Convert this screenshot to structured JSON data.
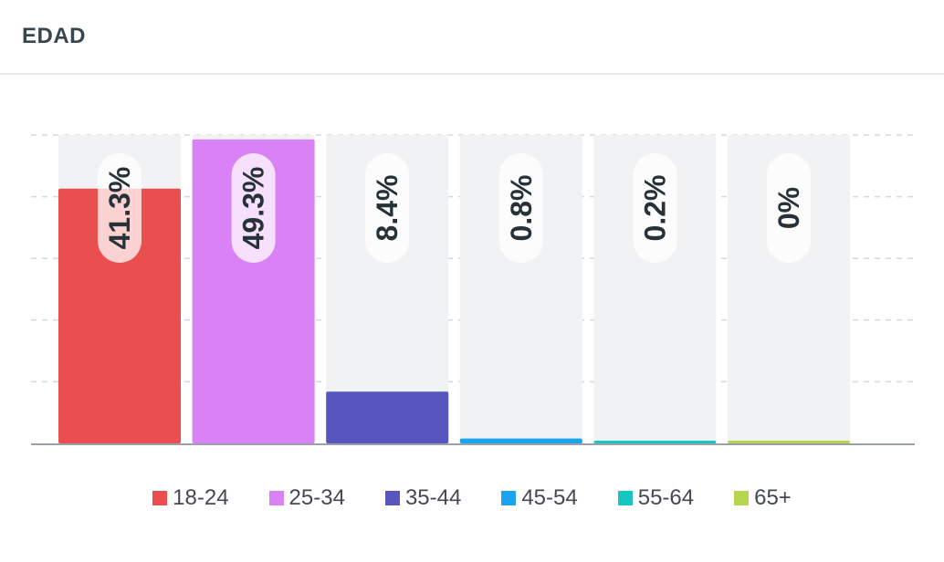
{
  "card": {
    "title": "EDAD"
  },
  "chart_data": {
    "type": "bar",
    "title": "EDAD",
    "categories": [
      "18-24",
      "25-34",
      "35-44",
      "45-54",
      "55-64",
      "65+"
    ],
    "values": [
      41.3,
      49.3,
      8.4,
      0.8,
      0.2,
      0
    ],
    "data_labels": [
      "41.3%",
      "49.3%",
      "8.4%",
      "0.8%",
      "0.2%",
      "0%"
    ],
    "colors": [
      "#ea4e4e",
      "#d982f5",
      "#5856be",
      "#1aa3ee",
      "#17c6c1",
      "#b7d54f"
    ],
    "ylim": [
      0,
      50
    ],
    "grid": true,
    "legend": "bottom",
    "xlabel": "",
    "ylabel": ""
  },
  "legend": {
    "items": [
      {
        "label": "18-24",
        "color": "#ea4e4e"
      },
      {
        "label": "25-34",
        "color": "#d982f5"
      },
      {
        "label": "35-44",
        "color": "#5856be"
      },
      {
        "label": "45-54",
        "color": "#1aa3ee"
      },
      {
        "label": "55-64",
        "color": "#17c6c1"
      },
      {
        "label": "65+",
        "color": "#b7d54f"
      }
    ]
  }
}
